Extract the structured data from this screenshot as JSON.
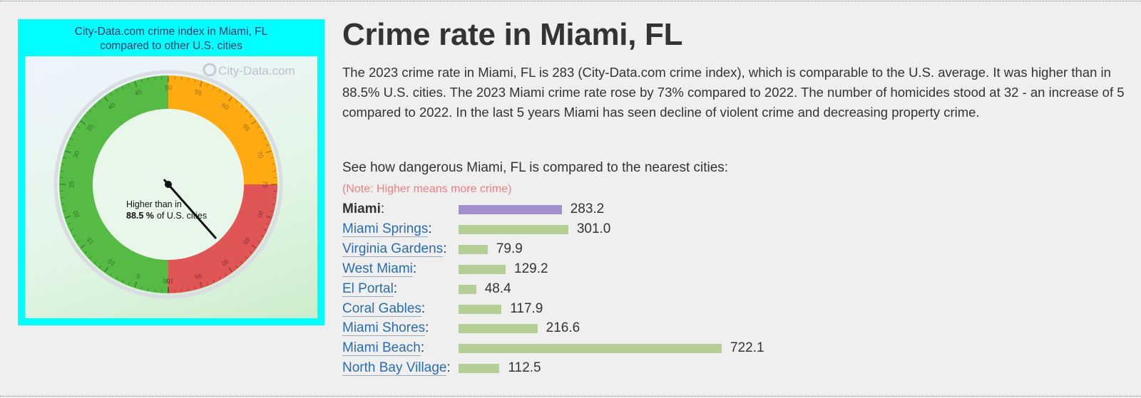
{
  "gauge": {
    "title_line1": "City-Data.com crime index in Miami, FL",
    "title_line2": "compared to other U.S. cities",
    "watermark": "City-Data.com",
    "percentile": 88.5,
    "caption_line1": "Higher than in",
    "caption_value": "88.5 %",
    "caption_rest": "of U.S. cities",
    "colors": {
      "low": "#55bb44",
      "mid": "#ffaa11",
      "high": "#e05555"
    },
    "tick_labels": [
      "0",
      "5",
      "10",
      "15",
      "20",
      "25",
      "30",
      "35",
      "40",
      "45",
      "50",
      "55",
      "60",
      "65",
      "70",
      "75",
      "80",
      "85",
      "90",
      "95",
      "100"
    ]
  },
  "header": {
    "title": "Crime rate in Miami, FL",
    "summary": "The 2023 crime rate in Miami, FL is 283 (City-Data.com crime index), which is comparable to the U.S. average. It was higher than in 88.5% U.S. cities. The 2023 Miami crime rate rose by 73% compared to 2022. The number of homicides stood at 32 - an increase of 5 compared to 2022. In the last 5 years Miami has seen decline of violent crime and decreasing property crime."
  },
  "comparison": {
    "intro": "See how dangerous Miami, FL is compared to the nearest cities:",
    "note": "(Note: Higher means more crime)"
  },
  "chart_data": {
    "type": "bar",
    "orientation": "horizontal",
    "title": "See how dangerous Miami, FL is compared to the nearest cities:",
    "categories": [
      "Miami",
      "Miami Springs",
      "Virginia Gardens",
      "West Miami",
      "El Portal",
      "Coral Gables",
      "Miami Shores",
      "Miami Beach",
      "North Bay Village"
    ],
    "values": [
      283.2,
      301.0,
      79.9,
      129.2,
      48.4,
      117.9,
      216.6,
      722.1,
      112.5
    ],
    "value_labels": [
      "283.2",
      "301.0",
      "79.9",
      "129.2",
      "48.4",
      "117.9",
      "216.6",
      "722.1",
      "112.5"
    ],
    "highlight_index": 0,
    "colors": {
      "highlight": "#a48fce",
      "default": "#b3cf94"
    }
  }
}
